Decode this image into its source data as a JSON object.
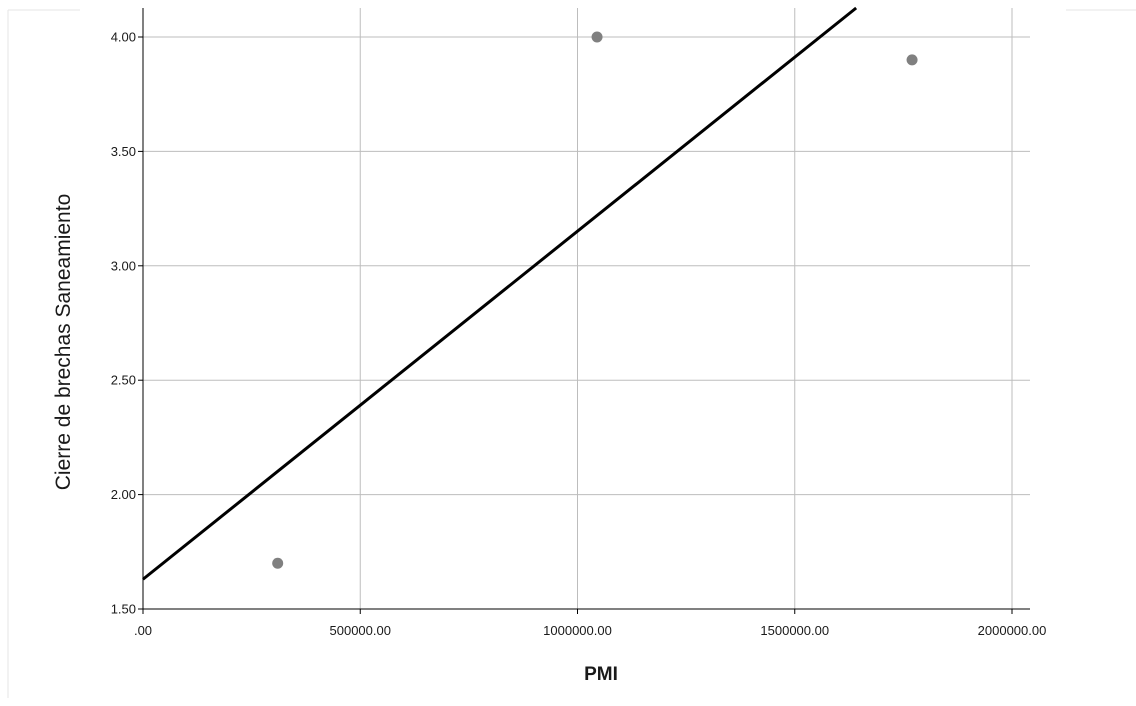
{
  "chart_data": {
    "type": "scatter",
    "title": "",
    "xlabel": "PMI",
    "ylabel": "Cierre  de brechas Saneamiento",
    "xlim": [
      0,
      2000000
    ],
    "ylim": [
      1.5,
      4.0
    ],
    "x_ticks": [
      0,
      500000,
      1000000,
      1500000,
      2000000
    ],
    "x_tick_labels": [
      ".00",
      "500000.00",
      "1000000.00",
      "1500000.00",
      "2000000.00"
    ],
    "y_ticks": [
      1.5,
      2.0,
      2.5,
      3.0,
      3.5,
      4.0
    ],
    "y_tick_labels": [
      "1.50",
      "2.00",
      "2.50",
      "3.00",
      "3.50",
      "4.00"
    ],
    "grid": true,
    "series": [
      {
        "points": [
          {
            "x": 310000,
            "y": 1.7
          },
          {
            "x": 1045000,
            "y": 4.0
          },
          {
            "x": 1770000,
            "y": 3.9
          }
        ],
        "color": "#808080"
      }
    ],
    "fit_line": {
      "color": "#000000",
      "points": [
        {
          "x": 0,
          "y": 1.63
        },
        {
          "x": 1650000,
          "y": 4.14
        }
      ]
    }
  }
}
